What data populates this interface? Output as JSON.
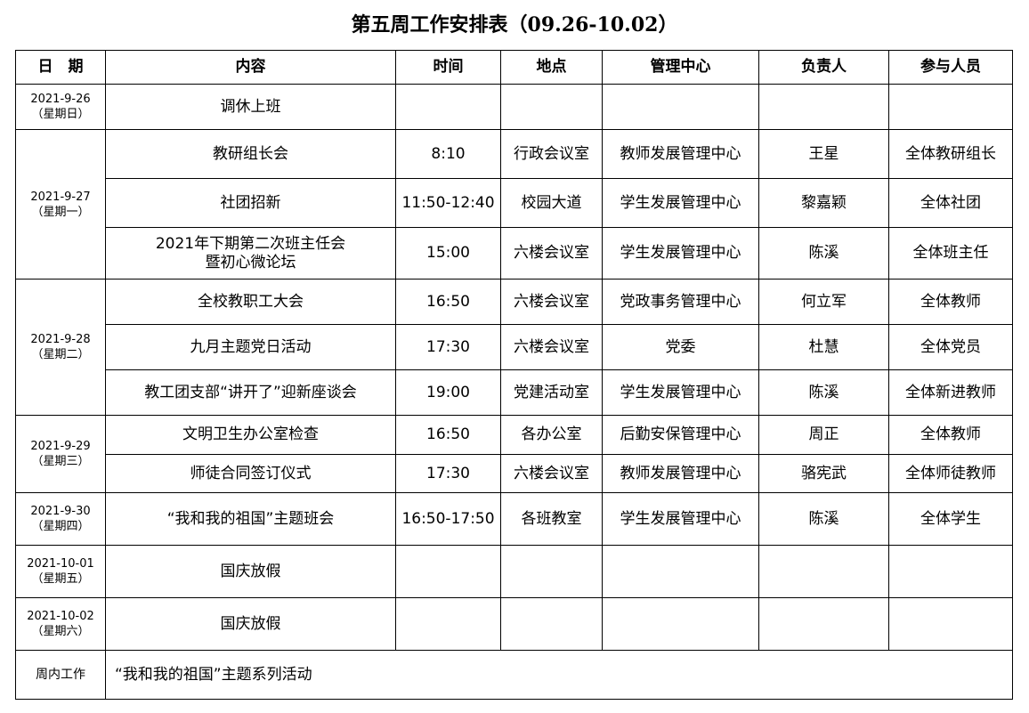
{
  "title": "第五周工作安排表（09.26-10.02）",
  "headers": [
    "日　期",
    "内容",
    "时间",
    "地点",
    "管理中心",
    "负责人",
    "参与人员"
  ],
  "days": [
    {
      "date": "2021-9-26",
      "weekday": "（星期日）",
      "events": [
        {
          "content": "调休上班",
          "time": "",
          "place": "",
          "center": "",
          "owner": "",
          "participants": ""
        }
      ]
    },
    {
      "date": "2021-9-27",
      "weekday": "（星期一）",
      "events": [
        {
          "content": "教研组长会",
          "time": "8:10",
          "place": "行政会议室",
          "center": "教师发展管理中心",
          "owner": "王星",
          "participants": "全体教研组长"
        },
        {
          "content": "社团招新",
          "time": "11:50-12:40",
          "place": "校园大道",
          "center": "学生发展管理中心",
          "owner": "黎嘉颖",
          "participants": "全体社团"
        },
        {
          "content": "2021年下期第二次班主任会\n暨初心微论坛",
          "time": "15:00",
          "place": "六楼会议室",
          "center": "学生发展管理中心",
          "owner": "陈溪",
          "participants": "全体班主任"
        }
      ]
    },
    {
      "date": "2021-9-28",
      "weekday": "（星期二）",
      "events": [
        {
          "content": "全校教职工大会",
          "time": "16:50",
          "place": "六楼会议室",
          "center": "党政事务管理中心",
          "owner": "何立军",
          "participants": "全体教师"
        },
        {
          "content": "九月主题党日活动",
          "time": "17:30",
          "place": "六楼会议室",
          "center": "党委",
          "owner": "杜慧",
          "participants": "全体党员"
        },
        {
          "content": "教工团支部“讲开了”迎新座谈会",
          "time": "19:00",
          "place": "党建活动室",
          "center": "学生发展管理中心",
          "owner": "陈溪",
          "participants": "全体新进教师"
        }
      ]
    },
    {
      "date": "2021-9-29",
      "weekday": "（星期三）",
      "events": [
        {
          "content": "文明卫生办公室检查",
          "time": "16:50",
          "place": "各办公室",
          "center": "后勤安保管理中心",
          "owner": "周正",
          "participants": "全体教师"
        },
        {
          "content": "师徒合同签订仪式",
          "time": "17:30",
          "place": "六楼会议室",
          "center": "教师发展管理中心",
          "owner": "骆宪武",
          "participants": "全体师徒教师"
        }
      ]
    },
    {
      "date": "2021-9-30",
      "weekday": "（星期四）",
      "events": [
        {
          "content": "“我和我的祖国”主题班会",
          "time": "16:50-17:50",
          "place": "各班教室",
          "center": "学生发展管理中心",
          "owner": "陈溪",
          "participants": "全体学生"
        }
      ]
    },
    {
      "date": "2021-10-01",
      "weekday": "（星期五）",
      "events": [
        {
          "content": "国庆放假",
          "time": "",
          "place": "",
          "center": "",
          "owner": "",
          "participants": ""
        }
      ]
    },
    {
      "date": "2021-10-02",
      "weekday": "（星期六）",
      "events": [
        {
          "content": "国庆放假",
          "time": "",
          "place": "",
          "center": "",
          "owner": "",
          "participants": ""
        }
      ]
    }
  ],
  "weekly": {
    "label": "周内工作",
    "content": "“我和我的祖国”主题系列活动"
  }
}
